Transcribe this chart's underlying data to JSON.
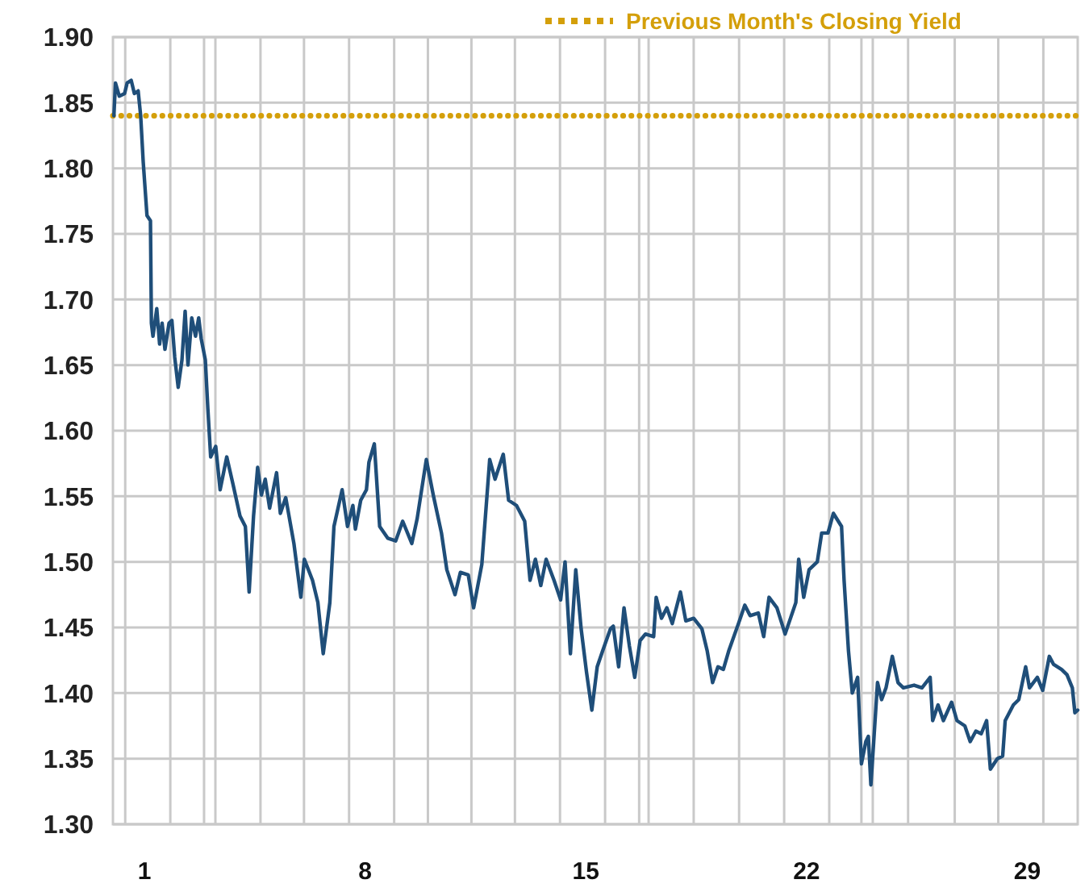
{
  "chart_data": {
    "type": "line",
    "x": [
      0.03,
      0.08,
      0.2,
      0.37,
      0.45,
      0.58,
      0.68,
      0.8,
      0.88,
      0.96,
      1.08,
      1.19,
      1.22,
      1.27,
      1.39,
      1.48,
      1.56,
      1.65,
      1.78,
      1.87,
      1.96,
      2.07,
      2.19,
      2.29,
      2.38,
      2.5,
      2.62,
      2.72,
      2.8,
      2.93,
      3.01,
      3.1,
      3.26,
      3.4,
      3.61,
      3.81,
      4.03,
      4.2,
      4.32,
      4.46,
      4.59,
      4.71,
      4.83,
      4.97,
      5.19,
      5.31,
      5.48,
      5.74,
      5.96,
      6.07,
      6.33,
      6.5,
      6.67,
      6.88,
      7.01,
      7.27,
      7.44,
      7.61,
      7.69,
      7.86,
      8.04,
      8.12,
      8.29,
      8.46,
      8.72,
      8.97,
      9.19,
      9.48,
      9.65,
      9.94,
      10.16,
      10.42,
      10.59,
      10.85,
      11.02,
      11.27,
      11.44,
      11.7,
      11.95,
      12.12,
      12.38,
      12.55,
      12.8,
      13.06,
      13.23,
      13.4,
      13.57,
      13.74,
      13.99,
      14.2,
      14.34,
      14.51,
      14.68,
      14.85,
      15.02,
      15.19,
      15.36,
      15.53,
      15.78,
      15.87,
      16.04,
      16.21,
      16.38,
      16.55,
      16.72,
      16.89,
      17.15,
      17.23,
      17.4,
      17.57,
      17.74,
      18.0,
      18.17,
      18.42,
      18.68,
      18.85,
      19.02,
      19.19,
      19.36,
      19.53,
      19.87,
      20.04,
      20.21,
      20.47,
      20.64,
      20.81,
      21.06,
      21.32,
      21.49,
      21.66,
      21.75,
      21.91,
      22.08,
      22.34,
      22.48,
      22.68,
      22.85,
      23.11,
      23.19,
      23.33,
      23.45,
      23.62,
      23.74,
      23.88,
      23.96,
      24.04,
      24.13,
      24.25,
      24.38,
      24.52,
      24.72,
      24.9,
      25.07,
      25.41,
      25.66,
      25.92,
      26.0,
      26.17,
      26.34,
      26.6,
      26.77,
      27.02,
      27.19,
      27.37,
      27.54,
      27.71,
      27.83,
      28.05,
      28.22,
      28.3,
      28.56,
      28.73,
      28.95,
      29.07,
      29.32,
      29.49,
      29.7,
      29.83,
      30.09,
      30.26,
      30.43,
      30.51,
      30.6
    ],
    "series": [
      {
        "color": "#1f4e79",
        "values": [
          1.84,
          1.865,
          1.855,
          1.857,
          1.865,
          1.867,
          1.857,
          1.859,
          1.84,
          1.805,
          1.764,
          1.76,
          1.682,
          1.672,
          1.693,
          1.666,
          1.682,
          1.662,
          1.682,
          1.684,
          1.656,
          1.633,
          1.654,
          1.691,
          1.65,
          1.686,
          1.672,
          1.686,
          1.67,
          1.654,
          1.617,
          1.58,
          1.588,
          1.555,
          1.58,
          1.559,
          1.535,
          1.527,
          1.477,
          1.535,
          1.572,
          1.551,
          1.563,
          1.541,
          1.568,
          1.537,
          1.549,
          1.514,
          1.473,
          1.502,
          1.486,
          1.469,
          1.43,
          1.469,
          1.527,
          1.555,
          1.527,
          1.543,
          1.525,
          1.547,
          1.555,
          1.576,
          1.59,
          1.527,
          1.518,
          1.516,
          1.531,
          1.514,
          1.533,
          1.578,
          1.551,
          1.522,
          1.494,
          1.475,
          1.492,
          1.49,
          1.465,
          1.498,
          1.578,
          1.563,
          1.582,
          1.547,
          1.543,
          1.531,
          1.486,
          1.502,
          1.482,
          1.502,
          1.486,
          1.471,
          1.5,
          1.43,
          1.494,
          1.449,
          1.416,
          1.387,
          1.42,
          1.432,
          1.449,
          1.451,
          1.42,
          1.465,
          1.436,
          1.412,
          1.44,
          1.445,
          1.443,
          1.473,
          1.457,
          1.465,
          1.453,
          1.477,
          1.455,
          1.457,
          1.449,
          1.432,
          1.408,
          1.42,
          1.418,
          1.432,
          1.455,
          1.467,
          1.459,
          1.461,
          1.443,
          1.473,
          1.465,
          1.445,
          1.457,
          1.469,
          1.502,
          1.473,
          1.494,
          1.5,
          1.522,
          1.522,
          1.537,
          1.527,
          1.486,
          1.432,
          1.4,
          1.412,
          1.346,
          1.363,
          1.367,
          1.33,
          1.363,
          1.408,
          1.395,
          1.404,
          1.428,
          1.408,
          1.404,
          1.406,
          1.404,
          1.412,
          1.379,
          1.391,
          1.379,
          1.393,
          1.379,
          1.375,
          1.363,
          1.371,
          1.369,
          1.379,
          1.342,
          1.35,
          1.352,
          1.379,
          1.391,
          1.395,
          1.42,
          1.404,
          1.412,
          1.402,
          1.428,
          1.422,
          1.418,
          1.414,
          1.404,
          1.385,
          1.387
        ]
      }
    ],
    "xlim": [
      0,
      30.6
    ],
    "xticks": [
      1,
      8,
      15,
      22,
      29,
      {
        "value": 0.39,
        "label": null
      },
      {
        "value": 1.82,
        "label": null
      },
      {
        "value": 2.89,
        "label": null
      },
      {
        "value": 3.25,
        "label": null
      },
      {
        "value": 4.68,
        "label": null
      },
      {
        "value": 6.06,
        "label": null
      },
      {
        "value": 7.49,
        "label": null
      },
      {
        "value": 8.92,
        "label": null
      },
      {
        "value": 9.99,
        "label": null
      },
      {
        "value": 11.37,
        "label": null
      },
      {
        "value": 12.75,
        "label": null
      },
      {
        "value": 14.18,
        "label": null
      },
      {
        "value": 15.61,
        "label": null
      },
      {
        "value": 16.69,
        "label": null
      },
      {
        "value": 16.99,
        "label": null
      },
      {
        "value": 18.42,
        "label": null
      },
      {
        "value": 19.86,
        "label": null
      },
      {
        "value": 21.29,
        "label": null
      },
      {
        "value": 22.72,
        "label": null
      },
      {
        "value": 23.74,
        "label": null
      },
      {
        "value": 24.1,
        "label": null
      },
      {
        "value": 25.22,
        "label": null
      },
      {
        "value": 26.7,
        "label": null
      },
      {
        "value": 28.08,
        "label": null
      },
      {
        "value": 29.51,
        "label": null
      }
    ],
    "ylim": [
      1.3,
      1.9
    ],
    "yticks": [
      {
        "value": 1.3,
        "label": "1.30"
      },
      {
        "value": 1.35,
        "label": "1.35"
      },
      {
        "value": 1.4,
        "label": "1.40"
      },
      {
        "value": 1.45,
        "label": "1.45"
      },
      {
        "value": 1.5,
        "label": "1.50"
      },
      {
        "value": 1.55,
        "label": "1.55"
      },
      {
        "value": 1.6,
        "label": "1.60"
      },
      {
        "value": 1.65,
        "label": "1.65"
      },
      {
        "value": 1.7,
        "label": "1.70"
      },
      {
        "value": 1.75,
        "label": "1.75"
      },
      {
        "value": 1.8,
        "label": "1.80"
      },
      {
        "value": 1.85,
        "label": "1.85"
      },
      {
        "value": 1.9,
        "label": "1.90"
      }
    ],
    "grid": true,
    "ref_lines": [
      {
        "axis": "y",
        "value": 1.84,
        "label": "Previous Month's Closing Yield",
        "color": "#d49f0a",
        "line_style": "dotted"
      }
    ],
    "line_style": "solid",
    "marker": "none"
  }
}
